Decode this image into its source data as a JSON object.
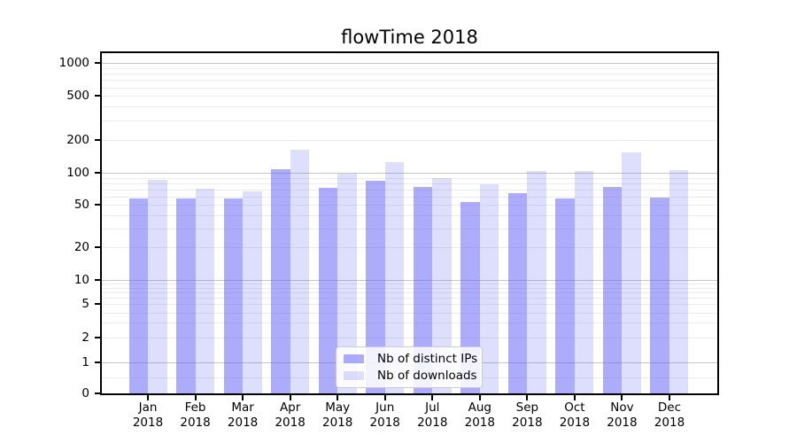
{
  "title": "flowTime 2018",
  "legend": {
    "items": [
      {
        "label": "Nb of distinct IPs",
        "swatch": "rgba(90,90,245,0.5)"
      },
      {
        "label": "Nb of downloads",
        "swatch": "rgba(90,90,245,0.2)"
      }
    ]
  },
  "colors": {
    "bar_distinct_ips": "rgba(90,90,245,0.5)",
    "bar_downloads": "rgba(90,90,245,0.2)",
    "grid_major": "#c6c6c6",
    "grid_minor": "#ebebeb",
    "axis_frame": "#000000"
  },
  "chart_data": {
    "type": "bar",
    "title": "flowTime 2018",
    "categories": [
      "Jan",
      "Feb",
      "Mar",
      "Apr",
      "May",
      "Jun",
      "Jul",
      "Aug",
      "Sep",
      "Oct",
      "Nov",
      "Dec"
    ],
    "category_year": "2018",
    "series": [
      {
        "name": "Nb of distinct IPs",
        "values": [
          57,
          58,
          58,
          108,
          72,
          85,
          73,
          53,
          65,
          58,
          73,
          59
        ]
      },
      {
        "name": "Nb of downloads",
        "values": [
          86,
          71,
          67,
          163,
          98,
          126,
          90,
          78,
          103,
          103,
          152,
          105
        ]
      }
    ],
    "yscale": "symlog",
    "yticks": [
      0,
      1,
      2,
      5,
      10,
      20,
      50,
      100,
      200,
      500,
      1000
    ],
    "ylim": [
      0,
      1000
    ],
    "grid": true,
    "legend_position": "lower center"
  }
}
